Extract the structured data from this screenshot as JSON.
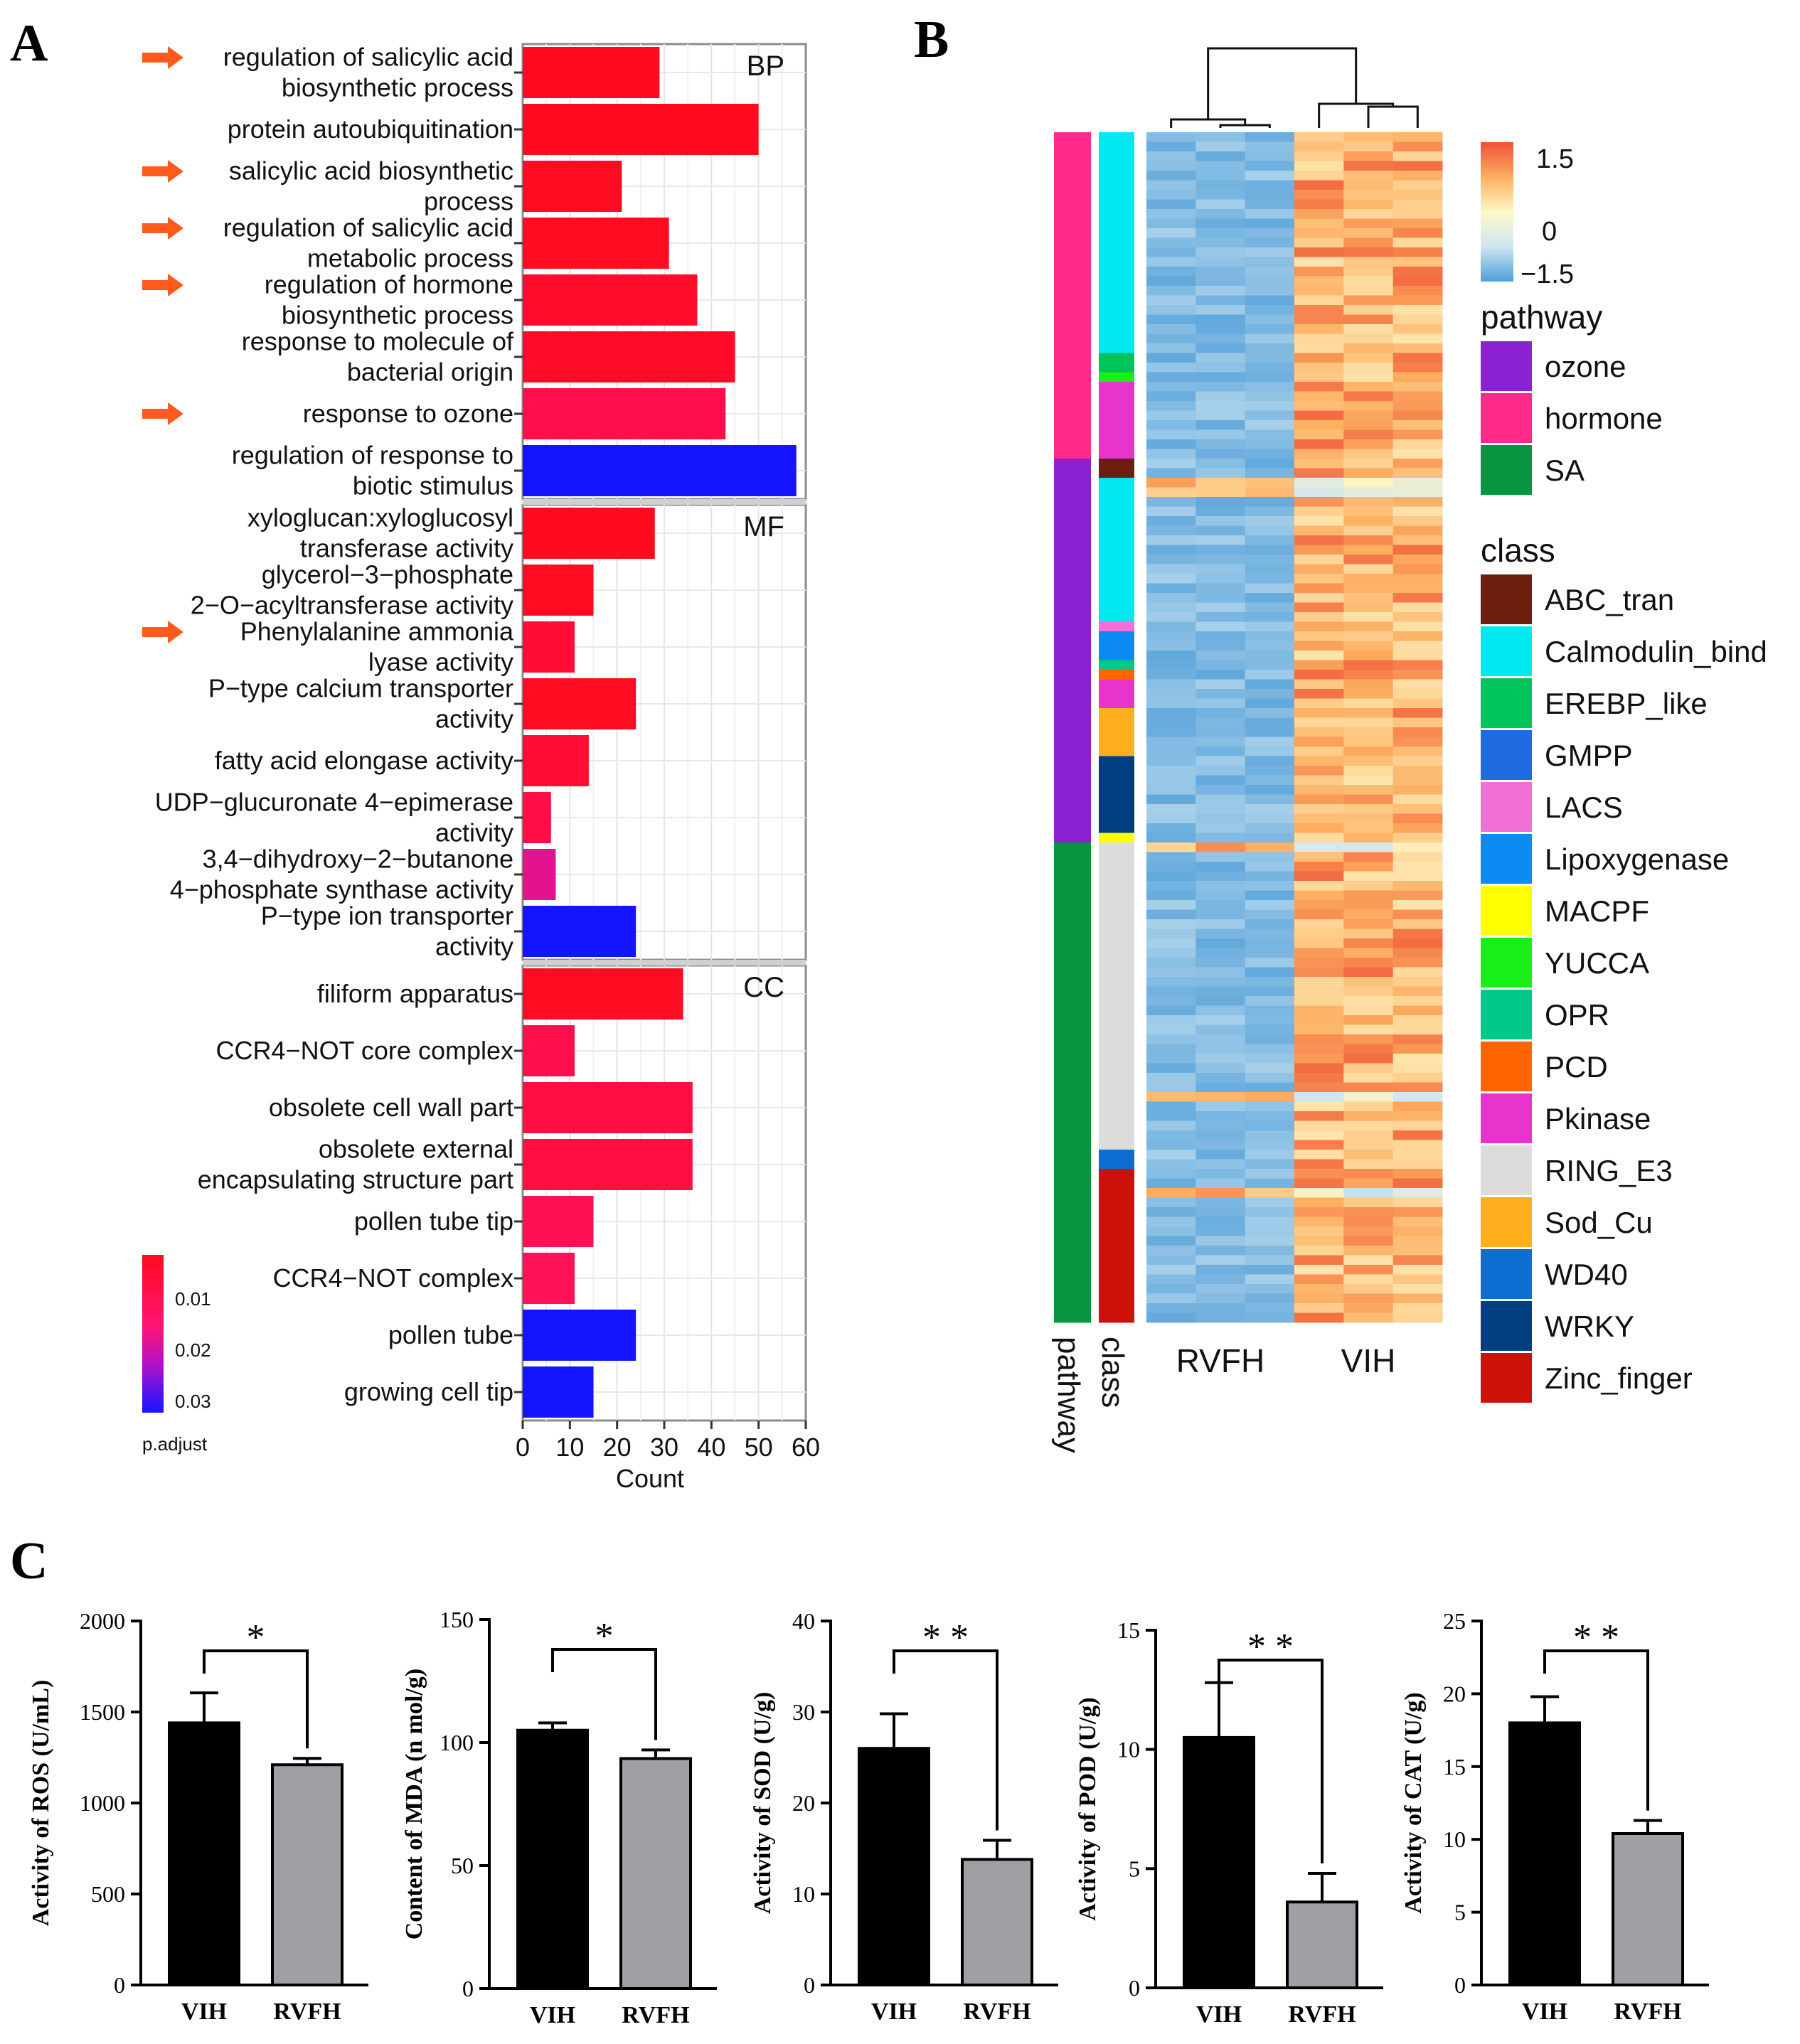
{
  "panel_labels": {
    "a": "A",
    "b": "B",
    "c": "C"
  },
  "chart_data": [
    {
      "id": "A",
      "type": "bar",
      "orientation": "horizontal",
      "xlabel": "Count",
      "xlim": [
        0,
        60
      ],
      "xticks": [
        0,
        10,
        20,
        30,
        40,
        50,
        60
      ],
      "color_scale": {
        "title": "p.adjust",
        "ticks": [
          "0.01",
          "0.02",
          "0.03"
        ],
        "low": "#ff0a1e",
        "high": "#1414ff"
      },
      "facets": [
        {
          "name": "BP",
          "items": [
            {
              "lines": [
                "regulation of salicylic acid",
                "biosynthetic process"
              ],
              "value": 29,
              "padj": 0.003,
              "arrow": true
            },
            {
              "lines": [
                "protein autoubiquitination"
              ],
              "value": 50,
              "padj": 0.003,
              "arrow": false
            },
            {
              "lines": [
                "salicylic acid biosynthetic",
                "process"
              ],
              "value": 21,
              "padj": 0.004,
              "arrow": true
            },
            {
              "lines": [
                "regulation of salicylic acid",
                "metabolic process"
              ],
              "value": 31,
              "padj": 0.004,
              "arrow": true
            },
            {
              "lines": [
                "regulation of hormone",
                "biosynthetic process"
              ],
              "value": 37,
              "padj": 0.006,
              "arrow": true
            },
            {
              "lines": [
                "response to molecule of",
                "bacterial origin"
              ],
              "value": 45,
              "padj": 0.005,
              "arrow": false
            },
            {
              "lines": [
                "response to ozone"
              ],
              "value": 43,
              "padj": 0.013,
              "arrow": true
            },
            {
              "lines": [
                "regulation of response to",
                "biotic stimulus"
              ],
              "value": 58,
              "padj": 0.035,
              "arrow": false
            }
          ]
        },
        {
          "name": "MF",
          "items": [
            {
              "lines": [
                "xyloglucan:xyloglucosyl",
                "transferase activity"
              ],
              "value": 28,
              "padj": 0.003,
              "arrow": false
            },
            {
              "lines": [
                "glycerol−3−phosphate",
                "2−O−acyltransferase activity"
              ],
              "value": 15,
              "padj": 0.004,
              "arrow": false
            },
            {
              "lines": [
                "Phenylalanine ammonia",
                "lyase activity"
              ],
              "value": 11,
              "padj": 0.008,
              "arrow": true
            },
            {
              "lines": [
                "P−type calcium transporter",
                "activity"
              ],
              "value": 24,
              "padj": 0.004,
              "arrow": false
            },
            {
              "lines": [
                "fatty acid elongase activity"
              ],
              "value": 14,
              "padj": 0.008,
              "arrow": false
            },
            {
              "lines": [
                "UDP−glucuronate 4−epimerase",
                "activity"
              ],
              "value": 6,
              "padj": 0.012,
              "arrow": false
            },
            {
              "lines": [
                "3,4−dihydroxy−2−butanone",
                "4−phosphate synthase activity"
              ],
              "value": 7,
              "padj": 0.024,
              "arrow": false
            },
            {
              "lines": [
                "P−type ion transporter",
                "activity"
              ],
              "value": 24,
              "padj": 0.035,
              "arrow": false
            }
          ]
        },
        {
          "name": "CC",
          "items": [
            {
              "lines": [
                "filiform apparatus"
              ],
              "value": 34,
              "padj": 0.004,
              "arrow": false
            },
            {
              "lines": [
                "CCR4−NOT core complex"
              ],
              "value": 11,
              "padj": 0.013,
              "arrow": false
            },
            {
              "lines": [
                "obsolete cell wall part"
              ],
              "value": 36,
              "padj": 0.011,
              "arrow": false
            },
            {
              "lines": [
                "obsolete external",
                "encapsulating structure part"
              ],
              "value": 36,
              "padj": 0.011,
              "arrow": false
            },
            {
              "lines": [
                "pollen tube tip"
              ],
              "value": 15,
              "padj": 0.015,
              "arrow": false
            },
            {
              "lines": [
                "CCR4−NOT complex"
              ],
              "value": 11,
              "padj": 0.016,
              "arrow": false
            },
            {
              "lines": [
                "pollen tube"
              ],
              "value": 24,
              "padj": 0.035,
              "arrow": false
            },
            {
              "lines": [
                "growing cell tip"
              ],
              "value": 15,
              "padj": 0.035,
              "arrow": false
            }
          ]
        }
      ]
    },
    {
      "id": "B",
      "type": "heatmap",
      "columns": [
        "RVFH",
        "VIH"
      ],
      "annotation_labels": [
        "pathway",
        "class"
      ],
      "scale": {
        "ticks": [
          "1.5",
          "0",
          "−1.5"
        ]
      },
      "pathway_legend_title": "pathway",
      "pathways": [
        {
          "name": "ozone",
          "color": "#8a22d2"
        },
        {
          "name": "hormone",
          "color": "#ff2a8a"
        },
        {
          "name": "SA",
          "color": "#079542"
        }
      ],
      "class_legend_title": "class",
      "classes": [
        {
          "name": "ABC_tran",
          "color": "#6e1e0e"
        },
        {
          "name": "Calmodulin_bind",
          "color": "#00e8f0"
        },
        {
          "name": "EREBP_like",
          "color": "#00c45a"
        },
        {
          "name": "GMPP",
          "color": "#1e6ae0"
        },
        {
          "name": "LACS",
          "color": "#f26fd6"
        },
        {
          "name": "Lipoxygenase",
          "color": "#0c8cf2"
        },
        {
          "name": "MACPF",
          "color": "#ffff00"
        },
        {
          "name": "YUCCA",
          "color": "#18ee18"
        },
        {
          "name": "OPR",
          "color": "#00c88a"
        },
        {
          "name": "PCD",
          "color": "#ff6400"
        },
        {
          "name": "Pkinase",
          "color": "#e834cc"
        },
        {
          "name": "RING_E3",
          "color": "#dcdcdc"
        },
        {
          "name": "Sod_Cu",
          "color": "#ffae1e"
        },
        {
          "name": "WD40",
          "color": "#0c6ed2"
        },
        {
          "name": "WRKY",
          "color": "#003e80"
        },
        {
          "name": "Zinc_finger",
          "color": "#cc1208"
        }
      ],
      "pathway_blocks": [
        {
          "pathway": "hormone",
          "rows": 34
        },
        {
          "pathway": "ozone",
          "rows": 40
        },
        {
          "pathway": "SA",
          "rows": 50
        }
      ],
      "class_blocks": [
        {
          "cls": "Calmodulin_bind",
          "rows": 23
        },
        {
          "cls": "EREBP_like",
          "rows": 2
        },
        {
          "cls": "YUCCA",
          "rows": 1
        },
        {
          "cls": "Pkinase",
          "rows": 8
        },
        {
          "cls": "ABC_tran",
          "rows": 2
        },
        {
          "cls": "Calmodulin_bind",
          "rows": 15
        },
        {
          "cls": "LACS",
          "rows": 1
        },
        {
          "cls": "Lipoxygenase",
          "rows": 3
        },
        {
          "cls": "OPR",
          "rows": 1
        },
        {
          "cls": "PCD",
          "rows": 1
        },
        {
          "cls": "Pkinase",
          "rows": 3
        },
        {
          "cls": "Sod_Cu",
          "rows": 5
        },
        {
          "cls": "WRKY",
          "rows": 8
        },
        {
          "cls": "MACPF",
          "rows": 1
        },
        {
          "cls": "RING_E3",
          "rows": 32
        },
        {
          "cls": "WD40",
          "rows": 2
        },
        {
          "cls": "Zinc_finger",
          "rows": 16
        }
      ]
    },
    {
      "id": "C1",
      "type": "bar",
      "ylabel": "Activity of ROS (U/mL)",
      "categories": [
        "VIH",
        "RVFH"
      ],
      "values": [
        1440,
        1210
      ],
      "errors": [
        165,
        35
      ],
      "ylim": [
        0,
        2000
      ],
      "yticks": [
        0,
        500,
        1000,
        1500,
        2000
      ],
      "significance": "*"
    },
    {
      "id": "C2",
      "type": "bar",
      "ylabel": "Content of  MDA (n mol/g)",
      "categories": [
        "VIH",
        "RVFH"
      ],
      "values": [
        105,
        93.5
      ],
      "errors": [
        3,
        3.5
      ],
      "ylim": [
        0,
        150
      ],
      "yticks": [
        0,
        50,
        100,
        150
      ],
      "significance": "*"
    },
    {
      "id": "C3",
      "type": "bar",
      "ylabel": "Activity of SOD (U/g)",
      "categories": [
        "VIH",
        "RVFH"
      ],
      "values": [
        26,
        13.8
      ],
      "errors": [
        3.8,
        2.1
      ],
      "ylim": [
        0,
        40
      ],
      "yticks": [
        0,
        10,
        20,
        30,
        40
      ],
      "significance": "* *"
    },
    {
      "id": "C4",
      "type": "bar",
      "ylabel": "Activity of POD (U/g)",
      "categories": [
        "VIH",
        "RVFH"
      ],
      "values": [
        10.5,
        3.6
      ],
      "errors": [
        2.3,
        1.2
      ],
      "ylim": [
        0,
        15
      ],
      "yticks": [
        0,
        5,
        10,
        15
      ],
      "significance": "* *"
    },
    {
      "id": "C5",
      "type": "bar",
      "ylabel": "Activity of CAT (U/g)",
      "categories": [
        "VIH",
        "RVFH"
      ],
      "values": [
        18,
        10.4
      ],
      "errors": [
        1.8,
        0.9
      ],
      "ylim": [
        0,
        25
      ],
      "yticks": [
        0,
        5,
        10,
        15,
        20,
        25
      ],
      "significance": "* *"
    }
  ]
}
